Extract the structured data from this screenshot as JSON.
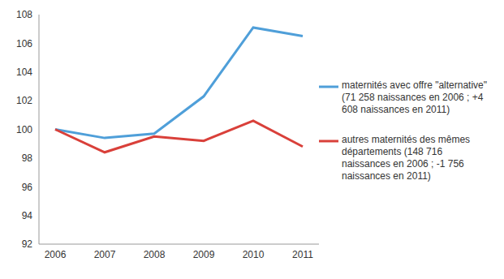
{
  "chart_data": {
    "type": "line",
    "categories": [
      "2006",
      "2007",
      "2008",
      "2009",
      "2010",
      "2011"
    ],
    "series": [
      {
        "name": "maternités avec offre \"alternative\" (71 258 naissances en 2006 ; +4 608 naissances en 2011)",
        "color": "#4f9fd9",
        "values": [
          100,
          99.4,
          99.7,
          102.3,
          107.1,
          106.5
        ]
      },
      {
        "name": "autres maternités des mêmes départements (148 716 naissances en 2006 ; -1 756 naissances en 2011)",
        "color": "#d9403a",
        "values": [
          100,
          98.4,
          99.5,
          99.2,
          100.6,
          98.8
        ]
      }
    ],
    "ylim": [
      92,
      108
    ],
    "yticks": [
      92,
      94,
      96,
      98,
      100,
      102,
      104,
      106,
      108
    ],
    "grid": false,
    "legend": "right"
  }
}
